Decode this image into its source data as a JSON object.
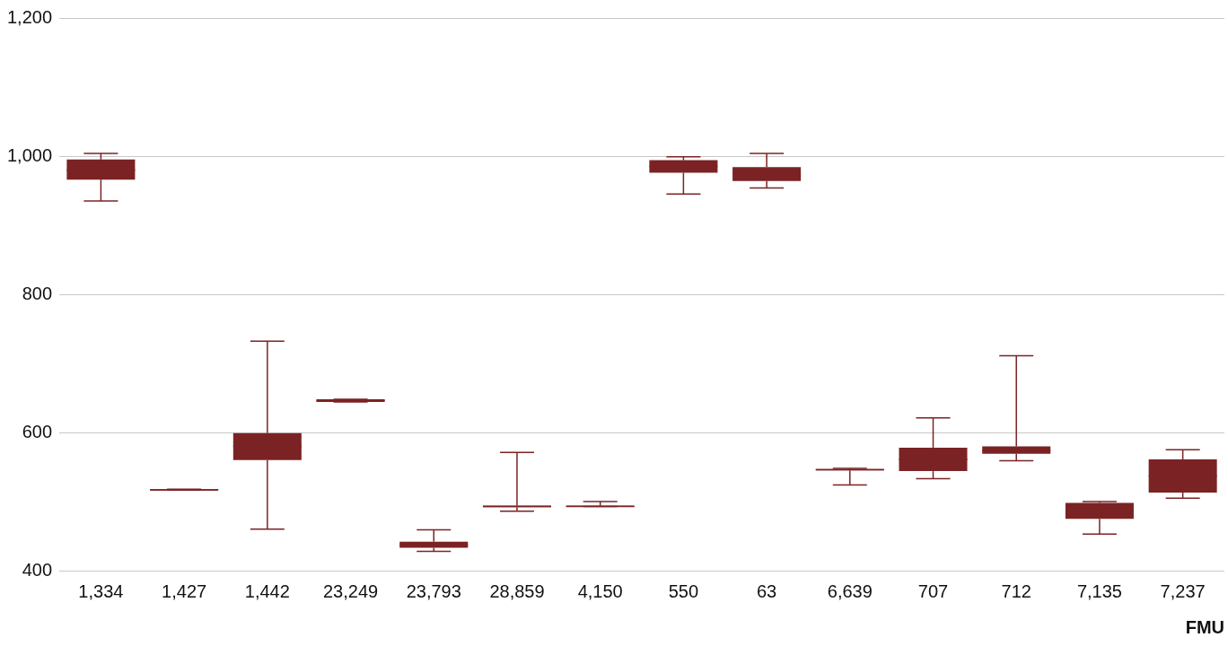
{
  "chart_data": {
    "type": "box",
    "xlabel": "FMU",
    "categories": [
      "1,334",
      "1,427",
      "1,442",
      "23,249",
      "23,793",
      "28,859",
      "4,150",
      "550",
      "63",
      "6,639",
      "707",
      "712",
      "7,135",
      "7,237"
    ],
    "color": "#7b2324",
    "boxes": [
      {
        "low": 935,
        "q1": 966,
        "median": 980,
        "q3": 995,
        "high": 1004
      },
      {
        "low": 517,
        "q1": 516,
        "median": 517,
        "q3": 518,
        "high": 518
      },
      {
        "low": 460,
        "q1": 560,
        "median": 580,
        "q3": 599,
        "high": 732
      },
      {
        "low": 644,
        "q1": 644,
        "median": 646,
        "q3": 648,
        "high": 648
      },
      {
        "low": 428,
        "q1": 433,
        "median": 437,
        "q3": 442,
        "high": 459
      },
      {
        "low": 486,
        "q1": 492,
        "median": 493,
        "q3": 494,
        "high": 571
      },
      {
        "low": 493,
        "q1": 493,
        "median": 493,
        "q3": 494,
        "high": 500
      },
      {
        "low": 945,
        "q1": 976,
        "median": 985,
        "q3": 994,
        "high": 999
      },
      {
        "low": 954,
        "q1": 964,
        "median": 974,
        "q3": 984,
        "high": 1004
      },
      {
        "low": 524,
        "q1": 545,
        "median": 546,
        "q3": 547,
        "high": 548
      },
      {
        "low": 533,
        "q1": 544,
        "median": 561,
        "q3": 578,
        "high": 621
      },
      {
        "low": 559,
        "q1": 569,
        "median": 574,
        "q3": 580,
        "high": 711
      },
      {
        "low": 453,
        "q1": 475,
        "median": 486,
        "q3": 498,
        "high": 500
      },
      {
        "low": 505,
        "q1": 513,
        "median": 537,
        "q3": 561,
        "high": 575
      }
    ],
    "ylim": [
      400,
      1200
    ],
    "yticks": [
      {
        "value": 400,
        "label": "400"
      },
      {
        "value": 600,
        "label": "600"
      },
      {
        "value": 800,
        "label": "800"
      },
      {
        "value": 1000,
        "label": "1,000"
      },
      {
        "value": 1200,
        "label": "1,200"
      }
    ],
    "grid": "y",
    "legend": false
  }
}
